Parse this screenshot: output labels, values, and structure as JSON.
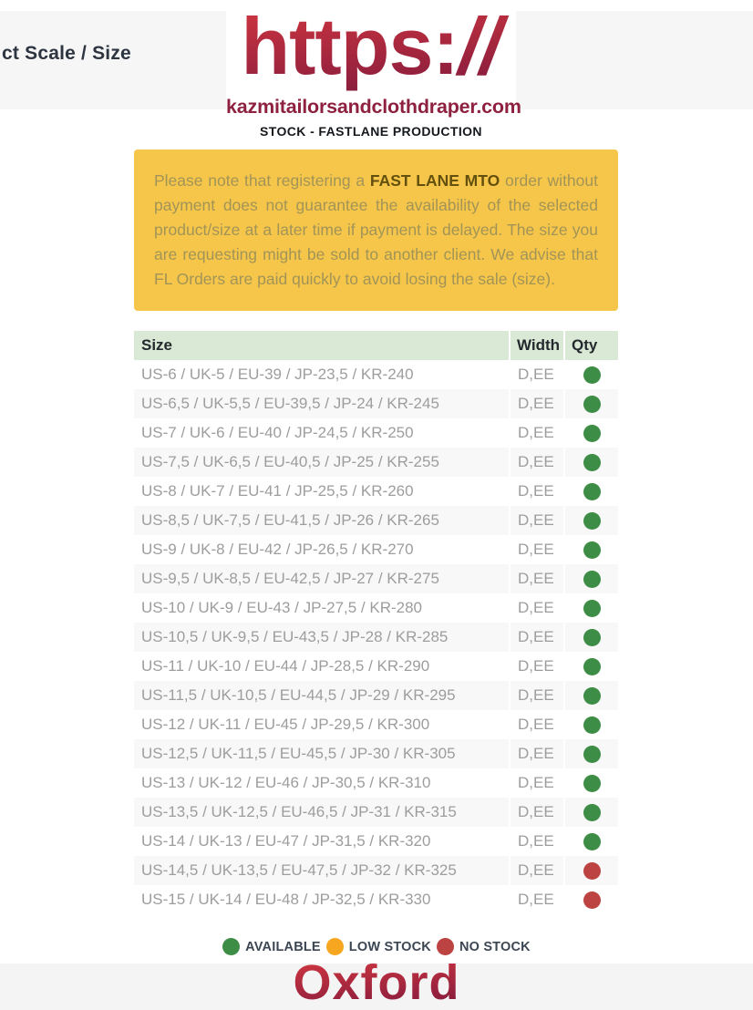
{
  "header": {
    "breadcrumb": "ct Scale / Size",
    "logo_text": "https:",
    "logo_slashes": "//",
    "domain": "kazmitailorsandclothdraper.com",
    "subtitle": "STOCK - FASTLANE PRODUCTION"
  },
  "notice": {
    "prefix": "Please note that registering a ",
    "highlight": "FAST LANE MTO",
    "suffix": " order without payment does not guarantee the availability of the selected product/size at a later time if payment is delayed. The size you are requesting might be sold to another client. We advise that FL Orders are paid quickly to avoid losing the sale (size)."
  },
  "table": {
    "columns": [
      "Size",
      "Width",
      "Qty"
    ],
    "rows": [
      {
        "size": "US-6 / UK-5 / EU-39 / JP-23,5 / KR-240",
        "width": "D,EE",
        "status": "available"
      },
      {
        "size": "US-6,5 / UK-5,5 / EU-39,5 / JP-24 / KR-245",
        "width": "D,EE",
        "status": "available"
      },
      {
        "size": "US-7 / UK-6 / EU-40 / JP-24,5 / KR-250",
        "width": "D,EE",
        "status": "available"
      },
      {
        "size": "US-7,5 / UK-6,5 / EU-40,5 / JP-25 / KR-255",
        "width": "D,EE",
        "status": "available"
      },
      {
        "size": "US-8 / UK-7 / EU-41 / JP-25,5 / KR-260",
        "width": "D,EE",
        "status": "available"
      },
      {
        "size": "US-8,5 / UK-7,5 / EU-41,5 / JP-26 / KR-265",
        "width": "D,EE",
        "status": "available"
      },
      {
        "size": "US-9 / UK-8 / EU-42 / JP-26,5 / KR-270",
        "width": "D,EE",
        "status": "available"
      },
      {
        "size": "US-9,5 / UK-8,5 / EU-42,5 / JP-27 / KR-275",
        "width": "D,EE",
        "status": "available"
      },
      {
        "size": "US-10 / UK-9 / EU-43 / JP-27,5 / KR-280",
        "width": "D,EE",
        "status": "available"
      },
      {
        "size": "US-10,5 / UK-9,5 / EU-43,5 / JP-28 / KR-285",
        "width": "D,EE",
        "status": "available"
      },
      {
        "size": "US-11 / UK-10 / EU-44 / JP-28,5 / KR-290",
        "width": "D,EE",
        "status": "available"
      },
      {
        "size": "US-11,5 / UK-10,5 / EU-44,5 / JP-29 / KR-295",
        "width": "D,EE",
        "status": "available"
      },
      {
        "size": "US-12 / UK-11 / EU-45 / JP-29,5 / KR-300",
        "width": "D,EE",
        "status": "available"
      },
      {
        "size": "US-12,5 / UK-11,5 / EU-45,5 / JP-30 / KR-305",
        "width": "D,EE",
        "status": "available"
      },
      {
        "size": "US-13 / UK-12 / EU-46 / JP-30,5 / KR-310",
        "width": "D,EE",
        "status": "available"
      },
      {
        "size": "US-13,5 / UK-12,5 / EU-46,5 / JP-31 / KR-315",
        "width": "D,EE",
        "status": "available"
      },
      {
        "size": "US-14 / UK-13 / EU-47 / JP-31,5 / KR-320",
        "width": "D,EE",
        "status": "available"
      },
      {
        "size": "US-14,5 / UK-13,5 / EU-47,5 / JP-32 / KR-325",
        "width": "D,EE",
        "status": "no_stock"
      },
      {
        "size": "US-15 / UK-14 / EU-48 / JP-32,5 / KR-330",
        "width": "D,EE",
        "status": "no_stock"
      }
    ]
  },
  "legend": {
    "items": [
      {
        "label": "AVAILABLE",
        "status": "available"
      },
      {
        "label": "LOW STOCK",
        "status": "low_stock"
      },
      {
        "label": "NO STOCK",
        "status": "no_stock"
      }
    ]
  },
  "status_colors": {
    "available": "#3e8d46",
    "low_stock": "#f7a61f",
    "no_stock": "#bc4342"
  },
  "colors": {
    "notice_background": "#f6c64b",
    "table_header_background": "#d9e9d6",
    "brand_red_top": "#cd3540",
    "brand_red_bottom": "#8a1d3d"
  },
  "footer": {
    "brand": "Oxford"
  }
}
